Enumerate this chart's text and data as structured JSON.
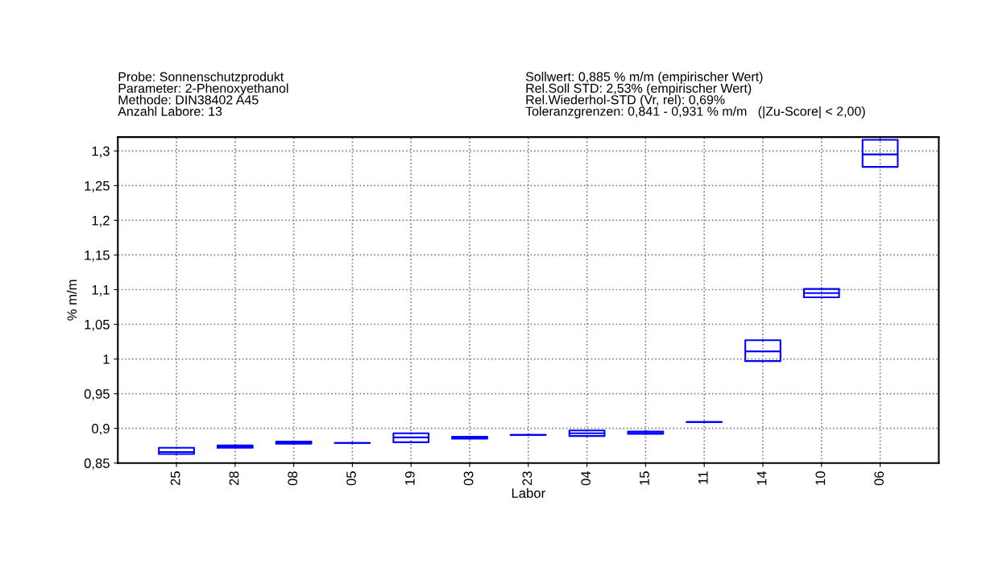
{
  "chart_data": {
    "type": "box",
    "annotations": [
      "Probe: Sonnenschutzprodukt\nParameter: 2-Phenoxyethanol\nMethode: DIN38402 A45\nAnzahl Labore: 13",
      "Sollwert: 0,885 % m/m (empirischer Wert)\nRel.Soll STD: 2,53% (empirischer Wert)\nRel.Wiederhol-STD (Vr, rel): 0,69%\nToleranzgrenzen: 0,841 - 0,931 % m/m   (|Zu-Score| < 2,00)"
    ],
    "xlabel": "Labor",
    "ylabel": "% m/m",
    "categories": [
      "25",
      "28",
      "08",
      "05",
      "19",
      "03",
      "23",
      "04",
      "15",
      "11",
      "14",
      "10",
      "06"
    ],
    "color": "#0000ff",
    "boxes": [
      {
        "low": 0.863,
        "q1": 0.863,
        "median": 0.866,
        "q3": 0.872,
        "high": 0.872
      },
      {
        "low": 0.872,
        "q1": 0.872,
        "median": 0.874,
        "q3": 0.8755,
        "high": 0.8755
      },
      {
        "low": 0.878,
        "q1": 0.878,
        "median": 0.879,
        "q3": 0.881,
        "high": 0.881
      },
      {
        "low": 0.879,
        "q1": 0.879,
        "median": 0.879,
        "q3": 0.879,
        "high": 0.879
      },
      {
        "low": 0.88,
        "q1": 0.88,
        "median": 0.887,
        "q3": 0.893,
        "high": 0.893
      },
      {
        "low": 0.885,
        "q1": 0.885,
        "median": 0.886,
        "q3": 0.888,
        "high": 0.888
      },
      {
        "low": 0.8905,
        "q1": 0.8905,
        "median": 0.8905,
        "q3": 0.8905,
        "high": 0.8905
      },
      {
        "low": 0.889,
        "q1": 0.889,
        "median": 0.893,
        "q3": 0.897,
        "high": 0.897
      },
      {
        "low": 0.892,
        "q1": 0.892,
        "median": 0.8935,
        "q3": 0.8955,
        "high": 0.8955
      },
      {
        "low": 0.909,
        "q1": 0.909,
        "median": 0.909,
        "q3": 0.909,
        "high": 0.909
      },
      {
        "low": 0.997,
        "q1": 0.997,
        "median": 1.011,
        "q3": 1.027,
        "high": 1.027
      },
      {
        "low": 1.089,
        "q1": 1.089,
        "median": 1.095,
        "q3": 1.101,
        "high": 1.101
      },
      {
        "low": 1.277,
        "q1": 1.277,
        "median": 1.295,
        "q3": 1.316,
        "high": 1.316
      }
    ],
    "ylim": [
      0.85,
      1.32
    ],
    "yticks": [
      {
        "value": 0.85,
        "label": "0,85"
      },
      {
        "value": 0.9,
        "label": "0,9"
      },
      {
        "value": 0.95,
        "label": "0,95"
      },
      {
        "value": 1,
        "label": "1"
      },
      {
        "value": 1.05,
        "label": "1,05"
      },
      {
        "value": 1.1,
        "label": "1,1"
      },
      {
        "value": 1.15,
        "label": "1,15"
      },
      {
        "value": 1.2,
        "label": "1,2"
      },
      {
        "value": 1.25,
        "label": "1,25"
      },
      {
        "value": 1.3,
        "label": "1,3"
      }
    ],
    "grid": true
  }
}
